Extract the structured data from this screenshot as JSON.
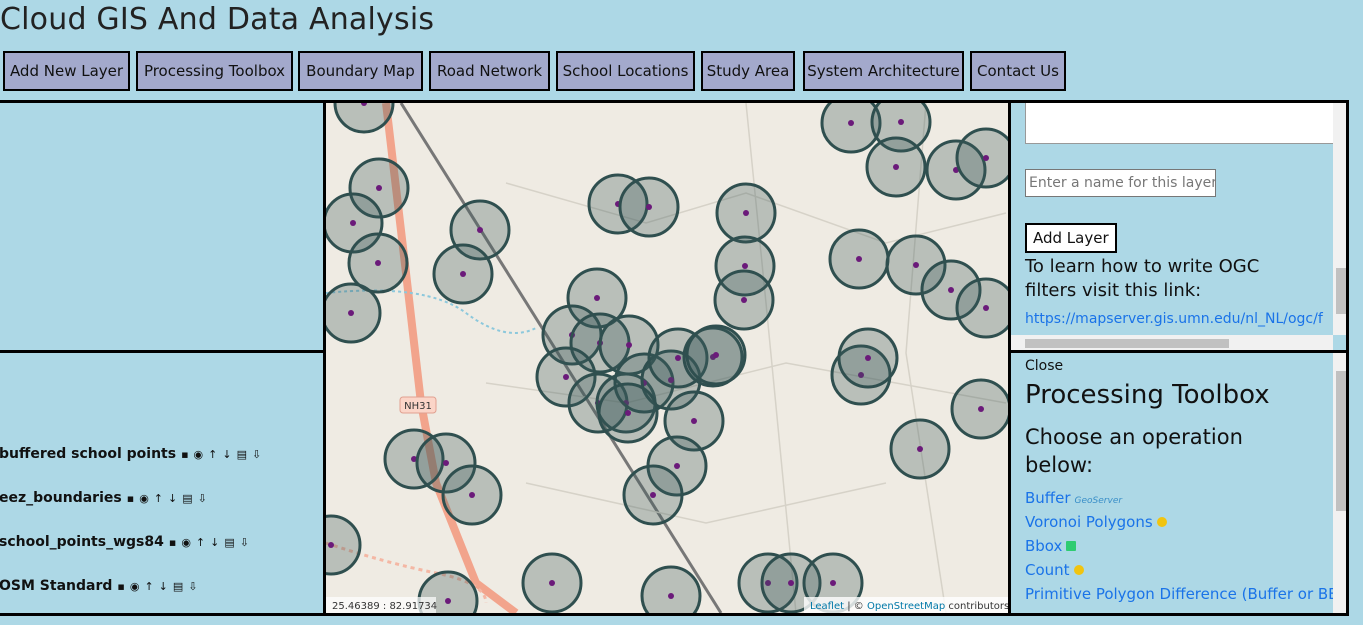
{
  "header": {
    "title": "Cloud GIS And Data Analysis"
  },
  "nav": {
    "buttons": [
      "Add New Layer",
      "Processing Toolbox",
      "Boundary Map",
      "Road Network",
      "School Locations",
      "Study Area",
      "System Architecture",
      "Contact Us"
    ]
  },
  "layers": {
    "items": [
      "buffered school points",
      "eez_boundaries",
      "school_points_wgs84",
      "OSM Standard"
    ]
  },
  "map": {
    "road_label": "NH31",
    "coordinates": "25.46389 : 82.91734",
    "attribution": {
      "leaflet": "Leaflet",
      "separator": "| ©",
      "osm": "OpenStreetMap",
      "suffix": "contributors"
    }
  },
  "add_layer_panel": {
    "name_placeholder": "Enter a name for this layer",
    "button": "Add Layer",
    "ogc_text": "To learn how to write OGC filters visit this link:",
    "ogc_link": "https://mapserver.gis.umn.edu/nl_NL/ogc/f"
  },
  "toolbox_panel": {
    "close": "Close",
    "title": "Processing Toolbox",
    "subtitle": "Choose an operation below:",
    "geoserver_badge": "GeoServer",
    "operations": [
      "Buffer",
      "Voronoi Polygons",
      "Bbox",
      "Count",
      "Primitive Polygon Difference (Buffer or BBOX only)"
    ]
  }
}
